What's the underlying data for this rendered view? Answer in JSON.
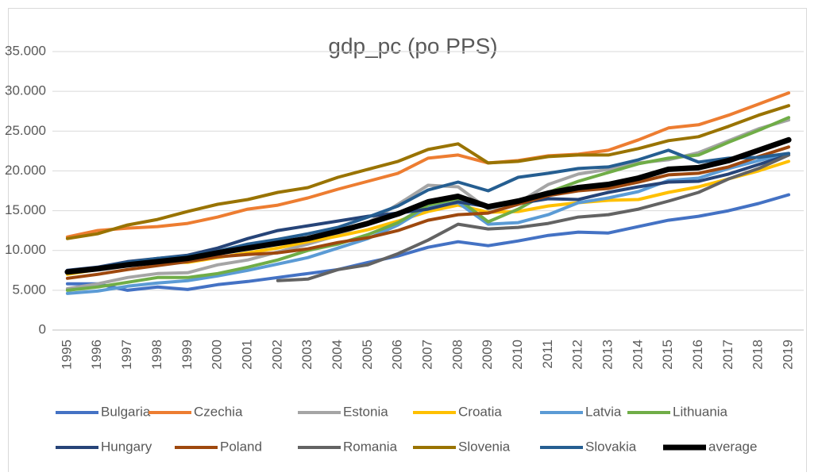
{
  "chart_data": {
    "type": "line",
    "title": "gdp_pc (po PPS)",
    "categories": [
      "1995",
      "1996",
      "1997",
      "1998",
      "1999",
      "2000",
      "2001",
      "2002",
      "2003",
      "2004",
      "2005",
      "2006",
      "2007",
      "2008",
      "2009",
      "2010",
      "2011",
      "2012",
      "2013",
      "2014",
      "2015",
      "2016",
      "2017",
      "2018",
      "2019"
    ],
    "ylim": [
      0,
      35000
    ],
    "yticks": [
      {
        "value": 0,
        "label": "0"
      },
      {
        "value": 5000,
        "label": "5.000"
      },
      {
        "value": 10000,
        "label": "10.000"
      },
      {
        "value": 15000,
        "label": "15.000"
      },
      {
        "value": 20000,
        "label": "20.000"
      },
      {
        "value": 25000,
        "label": "25.000"
      },
      {
        "value": 30000,
        "label": "30.000"
      },
      {
        "value": 35000,
        "label": "35.000"
      }
    ],
    "grid": true,
    "legend": "bottom",
    "series": [
      {
        "name": "Bulgaria",
        "color": "#4472c4",
        "values": [
          5800,
          5800,
          5000,
          5400,
          5100,
          5700,
          6100,
          6600,
          7100,
          7600,
          8500,
          9300,
          10400,
          11100,
          10600,
          11200,
          11900,
          12300,
          12200,
          13000,
          13800,
          14300,
          15000,
          15900,
          17000
        ]
      },
      {
        "name": "Czechia",
        "color": "#ed7d31",
        "values": [
          11700,
          12500,
          12800,
          13000,
          13400,
          14200,
          15200,
          15700,
          16600,
          17700,
          18700,
          19700,
          21600,
          22000,
          21000,
          21300,
          21900,
          22100,
          22600,
          23900,
          25400,
          25800,
          27000,
          28400,
          29800
        ]
      },
      {
        "name": "Estonia",
        "color": "#a5a5a5",
        "values": [
          5200,
          5800,
          6600,
          7100,
          7200,
          8200,
          8800,
          9800,
          10800,
          11900,
          13500,
          15800,
          18200,
          18000,
          15200,
          16000,
          18300,
          19600,
          20200,
          21000,
          21400,
          22300,
          23800,
          25300,
          26400
        ]
      },
      {
        "name": "Croatia",
        "color": "#ffc000",
        "values": [
          7000,
          7600,
          8300,
          8500,
          8500,
          9100,
          9700,
          10300,
          11100,
          11800,
          12600,
          13700,
          14900,
          15700,
          14800,
          14900,
          15600,
          16000,
          16300,
          16400,
          17300,
          18000,
          19000,
          20000,
          21200
        ]
      },
      {
        "name": "Latvia",
        "color": "#5b9bd5",
        "values": [
          4600,
          4900,
          5500,
          5900,
          6200,
          6800,
          7500,
          8300,
          9100,
          10300,
          11500,
          13200,
          15500,
          16000,
          13300,
          13500,
          14500,
          16000,
          16600,
          17400,
          18800,
          19100,
          20300,
          21300,
          22200
        ]
      },
      {
        "name": "Lithuania",
        "color": "#70ad47",
        "values": [
          5000,
          5400,
          6000,
          6600,
          6600,
          7100,
          7900,
          8800,
          10000,
          10800,
          12000,
          13500,
          15700,
          16500,
          13600,
          15200,
          17300,
          18700,
          19800,
          20900,
          21600,
          22000,
          23600,
          25100,
          26700
        ]
      },
      {
        "name": "Hungary",
        "color": "#264478",
        "values": [
          7500,
          7900,
          8600,
          9000,
          9400,
          10300,
          11500,
          12500,
          13100,
          13700,
          14300,
          14700,
          15200,
          16100,
          15500,
          15900,
          16500,
          16400,
          17300,
          18000,
          18600,
          18700,
          19600,
          20800,
          22000
        ]
      },
      {
        "name": "Poland",
        "color": "#9e480e",
        "values": [
          6500,
          7000,
          7600,
          8100,
          8600,
          9200,
          9500,
          9700,
          10200,
          11000,
          11600,
          12500,
          13800,
          14500,
          14700,
          15800,
          16900,
          17500,
          17800,
          18600,
          19500,
          19700,
          20500,
          21800,
          23000
        ]
      },
      {
        "name": "Romania",
        "color": "#636363",
        "values": [
          null,
          null,
          null,
          null,
          null,
          null,
          null,
          6200,
          6400,
          7600,
          8200,
          9600,
          11300,
          13300,
          12700,
          12900,
          13400,
          14200,
          14500,
          15200,
          16200,
          17300,
          19000,
          20300,
          22000
        ]
      },
      {
        "name": "Slovenia",
        "color": "#997300",
        "values": [
          11500,
          12100,
          13200,
          13900,
          14900,
          15800,
          16400,
          17300,
          17900,
          19200,
          20200,
          21200,
          22700,
          23400,
          21000,
          21200,
          21800,
          22000,
          22000,
          22800,
          23800,
          24300,
          25600,
          27000,
          28200
        ]
      },
      {
        "name": "Slovakia",
        "color": "#255e91",
        "values": [
          7200,
          7800,
          8500,
          9000,
          9300,
          9900,
          10800,
          11400,
          12100,
          12900,
          14200,
          15600,
          17600,
          18600,
          17500,
          19200,
          19700,
          20300,
          20500,
          21400,
          22600,
          21100,
          21600,
          21700,
          22200
        ]
      },
      {
        "name": "average",
        "color": "#000000",
        "values": [
          7300,
          7700,
          8200,
          8600,
          9000,
          9700,
          10300,
          10900,
          11500,
          12400,
          13400,
          14600,
          16100,
          16800,
          15500,
          16200,
          17200,
          17900,
          18300,
          19100,
          20200,
          20400,
          21300,
          22600,
          23900
        ]
      }
    ]
  }
}
